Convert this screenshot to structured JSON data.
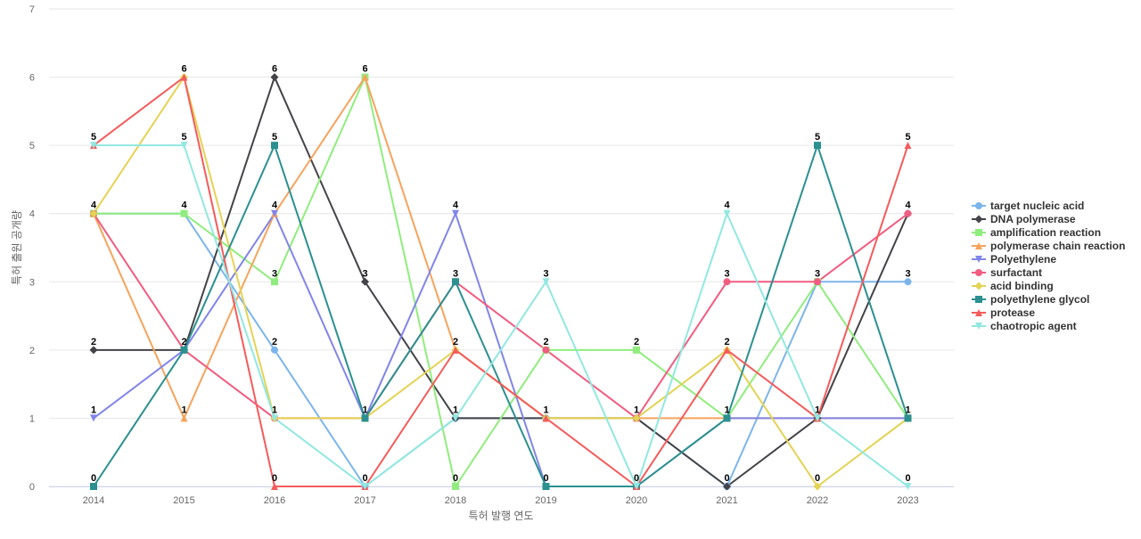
{
  "chart_data": {
    "type": "line",
    "title": "",
    "xlabel": "특허 발행 연도",
    "ylabel": "특허 출원 공개량",
    "ylim": [
      0,
      7
    ],
    "yticks": [
      0,
      1,
      2,
      3,
      4,
      5,
      6,
      7
    ],
    "x": [
      "2014",
      "2015",
      "2016",
      "2017",
      "2018",
      "2019",
      "2020",
      "2021",
      "2022",
      "2023"
    ],
    "grid": "horizontal",
    "legend_position": "right",
    "series": [
      {
        "name": "target nucleic acid",
        "color": "#7cb5ec",
        "marker": "circle",
        "values": [
          4,
          4,
          2,
          0,
          1,
          1,
          1,
          0,
          3,
          3
        ]
      },
      {
        "name": "DNA polymerase",
        "color": "#434348",
        "marker": "diamond",
        "values": [
          2,
          2,
          6,
          3,
          1,
          1,
          1,
          0,
          1,
          4
        ]
      },
      {
        "name": "amplification reaction",
        "color": "#90ed7d",
        "marker": "square",
        "values": [
          4,
          4,
          3,
          6,
          0,
          2,
          2,
          1,
          3,
          1
        ]
      },
      {
        "name": "polymerase chain reaction",
        "color": "#f7a35c",
        "marker": "triangle",
        "values": [
          4,
          1,
          4,
          6,
          2,
          1,
          1,
          1,
          1,
          1
        ]
      },
      {
        "name": "Polyethylene",
        "color": "#8085e9",
        "marker": "triangle-down",
        "values": [
          1,
          2,
          4,
          1,
          4,
          0,
          0,
          1,
          1,
          1
        ]
      },
      {
        "name": "surfactant",
        "color": "#f15c80",
        "marker": "circle",
        "values": [
          4,
          2,
          1,
          1,
          3,
          2,
          1,
          3,
          3,
          4
        ]
      },
      {
        "name": "acid binding",
        "color": "#e4d354",
        "marker": "diamond",
        "values": [
          4,
          6,
          1,
          1,
          2,
          1,
          1,
          2,
          0,
          1
        ]
      },
      {
        "name": "polyethylene glycol",
        "color": "#2b908f",
        "marker": "square",
        "values": [
          0,
          2,
          5,
          1,
          3,
          0,
          0,
          1,
          5,
          1
        ]
      },
      {
        "name": "protease",
        "color": "#f45b5b",
        "marker": "triangle",
        "values": [
          5,
          6,
          0,
          0,
          2,
          1,
          0,
          2,
          1,
          5
        ]
      },
      {
        "name": "chaotropic agent",
        "color": "#91e8e1",
        "marker": "triangle-down",
        "values": [
          5,
          5,
          1,
          0,
          1,
          3,
          0,
          4,
          1,
          0
        ]
      }
    ],
    "top_labels": [
      5,
      6,
      6,
      6,
      4,
      3,
      2,
      4,
      5,
      5
    ],
    "data_labels": [
      [
        5,
        4,
        2,
        1,
        0
      ],
      [
        6,
        5,
        4,
        2,
        1
      ],
      [
        6,
        5,
        4,
        3,
        2,
        1,
        0
      ],
      [
        6,
        3,
        1,
        0
      ],
      [
        4,
        3,
        2,
        1,
        0
      ],
      [
        3,
        2,
        1,
        0
      ],
      [
        2,
        1,
        0
      ],
      [
        4,
        3,
        2,
        1,
        0
      ],
      [
        5,
        3,
        1,
        0
      ],
      [
        5,
        4,
        3,
        1,
        0
      ]
    ]
  }
}
